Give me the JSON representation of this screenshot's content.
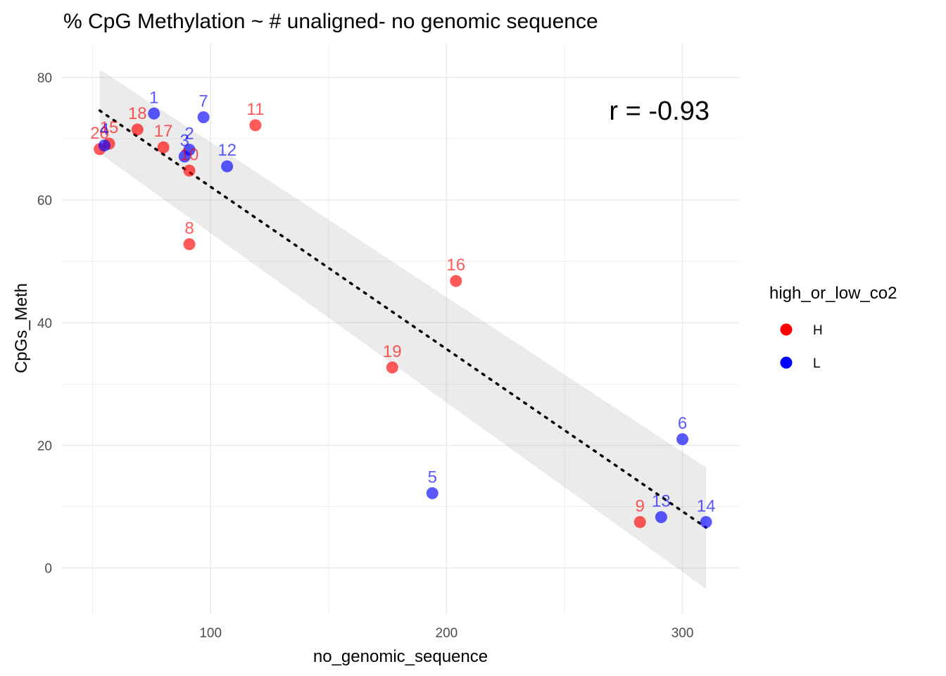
{
  "chart_data": {
    "type": "scatter",
    "title": "% CpG Methylation ~ # unaligned- no genomic sequence",
    "xlabel": "no_genomic_sequence",
    "ylabel": "CpGs_Meth",
    "xlim": [
      37,
      324
    ],
    "ylim": [
      -7.5,
      85.5
    ],
    "xticks": [
      100,
      200,
      300
    ],
    "yticks": [
      0,
      20,
      40,
      60,
      80
    ],
    "grid": true,
    "annotation": "r = -0.93",
    "legend": {
      "title": "high_or_low_co2",
      "placement": "right",
      "entries": [
        {
          "label": "H",
          "color": "#ff0000"
        },
        {
          "label": "L",
          "color": "#0000ff"
        }
      ]
    },
    "series": [
      {
        "name": "H",
        "color": "#ff0000",
        "points": [
          {
            "label": "20",
            "x": 53,
            "y": 68.3
          },
          {
            "label": "15",
            "x": 57,
            "y": 69.2
          },
          {
            "label": "18",
            "x": 69,
            "y": 71.5
          },
          {
            "label": "17",
            "x": 80,
            "y": 68.6
          },
          {
            "label": "10",
            "x": 91,
            "y": 64.8
          },
          {
            "label": "8",
            "x": 91,
            "y": 52.8
          },
          {
            "label": "11",
            "x": 119,
            "y": 72.2
          },
          {
            "label": "16",
            "x": 204,
            "y": 46.8
          },
          {
            "label": "19",
            "x": 177,
            "y": 32.7
          },
          {
            "label": "9",
            "x": 282,
            "y": 7.5
          }
        ]
      },
      {
        "name": "L",
        "color": "#0000ff",
        "points": [
          {
            "label": "4",
            "x": 55,
            "y": 68.9
          },
          {
            "label": "1",
            "x": 76,
            "y": 74.1
          },
          {
            "label": "7",
            "x": 97,
            "y": 73.5
          },
          {
            "label": "2",
            "x": 91,
            "y": 68.2
          },
          {
            "label": "3",
            "x": 89,
            "y": 67.1
          },
          {
            "label": "12",
            "x": 107,
            "y": 65.5
          },
          {
            "label": "5",
            "x": 194,
            "y": 12.2
          },
          {
            "label": "6",
            "x": 300,
            "y": 21.0
          },
          {
            "label": "13",
            "x": 291,
            "y": 8.3
          },
          {
            "label": "14",
            "x": 310,
            "y": 7.5
          }
        ]
      }
    ],
    "trend_line": {
      "x": [
        53,
        310
      ],
      "y": [
        74.6,
        6.6
      ]
    },
    "confidence_band": {
      "x": [
        53,
        310
      ],
      "upper": [
        81.3,
        16.4
      ],
      "lower": [
        67.6,
        -3.4
      ]
    }
  }
}
